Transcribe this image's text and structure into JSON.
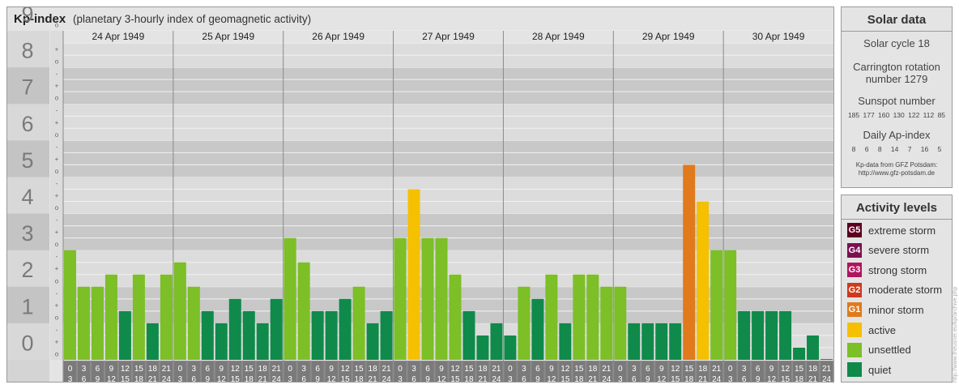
{
  "header": {
    "title": "Kp-index",
    "subtitle": "(planetary 3-hourly index of geomagnetic activity)"
  },
  "solar": {
    "heading": "Solar data",
    "cycle": "Solar cycle 18",
    "rotation_line1": "Carrington rotation",
    "rotation_line2": "number 1279",
    "sunspot_heading": "Sunspot number",
    "sunspot_values": "185 177 160 130 122 112 85",
    "ap_heading": "Daily Ap-index",
    "ap_values": "8 6 8 14 7 16 5",
    "source_line1": "Kp-data from GFZ Potsdam:",
    "source_line2": "http://www.gfz-potsdam.de"
  },
  "activity": {
    "heading": "Activity levels",
    "levels": [
      {
        "code": "G5",
        "label": "extreme storm",
        "color": "#5c0020"
      },
      {
        "code": "G4",
        "label": "severe storm",
        "color": "#7b1050"
      },
      {
        "code": "G3",
        "label": "strong storm",
        "color": "#b0155e"
      },
      {
        "code": "G2",
        "label": "moderate storm",
        "color": "#cc3a1e"
      },
      {
        "code": "G1",
        "label": "minor storm",
        "color": "#e07a1c"
      },
      {
        "code": "",
        "label": "active",
        "color": "#f5c000"
      },
      {
        "code": "",
        "label": "unsettled",
        "color": "#7cbf26"
      },
      {
        "code": "",
        "label": "quiet",
        "color": "#0f8a4a"
      }
    ]
  },
  "watermark": "http://www.theusner.eu/kp/archive.php",
  "chart_data": {
    "type": "bar",
    "ylim": [
      0,
      9
    ],
    "yticks": [
      "0",
      "1",
      "2",
      "3",
      "4",
      "5",
      "6",
      "7",
      "8",
      "9"
    ],
    "minor_marks": [
      "o",
      "+",
      "-"
    ],
    "days": [
      "24 Apr 1949",
      "25 Apr 1949",
      "26 Apr 1949",
      "27 Apr 1949",
      "28 Apr 1949",
      "29 Apr 1949",
      "30 Apr 1949"
    ],
    "hours_top": [
      "0",
      "3",
      "6",
      "9",
      "12",
      "15",
      "18",
      "21"
    ],
    "hours_bottom": [
      "3",
      "6",
      "9",
      "12",
      "15",
      "18",
      "21",
      "24"
    ],
    "values": [
      3.0,
      2.0,
      2.0,
      2.333,
      1.333,
      2.333,
      1.0,
      2.333,
      2.667,
      2.0,
      1.333,
      1.0,
      1.667,
      1.333,
      1.0,
      1.667,
      3.333,
      2.667,
      1.333,
      1.333,
      1.667,
      2.0,
      1.0,
      1.333,
      3.333,
      4.667,
      3.333,
      3.333,
      2.333,
      1.333,
      0.667,
      1.0,
      0.667,
      2.0,
      1.667,
      2.333,
      1.0,
      2.333,
      2.333,
      2.0,
      2.0,
      1.0,
      1.0,
      1.0,
      1.0,
      5.333,
      4.333,
      3.0,
      3.0,
      1.333,
      1.333,
      1.333,
      1.333,
      0.333,
      0.667,
      0.0
    ],
    "colors": {
      "quiet": "#0f8a4a",
      "unsettled": "#7cbf26",
      "active": "#f5c000",
      "g1": "#e07a1c",
      "g2": "#cc3a1e"
    }
  }
}
